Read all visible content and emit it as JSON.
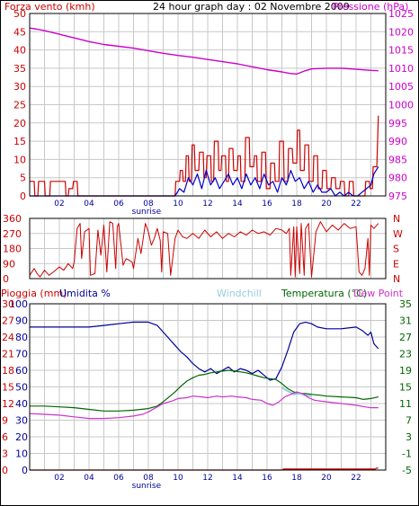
{
  "header": {
    "title": "24 hour graph day : 02 Novembre 2009",
    "left_label": "Forza vento (kmh)",
    "right_label": "Pressione (hPa)"
  },
  "colors": {
    "wind": "#cc0000",
    "gust": "#0000cc",
    "pressure": "#cc00cc",
    "humidity": "#000099",
    "windchill": "#99ccdd",
    "temperature": "#006600",
    "dewpoint": "#cc33cc",
    "rain": "#cc0000",
    "grid": "#c8c8c8"
  },
  "chart_data": [
    {
      "type": "line",
      "name": "wind-pressure",
      "x_ticks": [
        "02",
        "04",
        "06",
        "08",
        "10",
        "12",
        "14",
        "16",
        "18",
        "20",
        "22"
      ],
      "x_annotation": "sunrise",
      "ylim_left": [
        0,
        50
      ],
      "yticks_left": [
        0,
        5,
        10,
        15,
        20,
        25,
        30,
        35,
        40,
        45,
        50
      ],
      "ylim_right": [
        975,
        1025
      ],
      "yticks_right": [
        975,
        980,
        985,
        990,
        995,
        1000,
        1005,
        1010,
        1015,
        1020,
        1025
      ],
      "series": [
        {
          "key": "wind",
          "axis": "left",
          "x": [
            0.0,
            0.3,
            0.35,
            0.55,
            0.6,
            1.0,
            1.05,
            1.35,
            1.4,
            2.4,
            2.45,
            2.6,
            2.65,
            2.9,
            2.95,
            3.2,
            3.25,
            9.8,
            9.85,
            10.1,
            10.15,
            10.3,
            10.35,
            10.5,
            10.55,
            10.7,
            10.75,
            10.9,
            10.95,
            11.1,
            11.15,
            11.4,
            11.45,
            11.7,
            11.75,
            11.9,
            11.95,
            12.2,
            12.25,
            12.4,
            12.45,
            12.7,
            12.75,
            12.9,
            12.95,
            13.2,
            13.25,
            13.4,
            13.45,
            13.7,
            13.75,
            14.0,
            14.05,
            14.2,
            14.25,
            14.5,
            14.55,
            14.8,
            14.85,
            15.1,
            15.15,
            15.3,
            15.35,
            15.6,
            15.65,
            15.9,
            15.95,
            16.2,
            16.25,
            16.5,
            16.55,
            16.8,
            16.85,
            17.1,
            17.15,
            17.4,
            17.45,
            17.7,
            17.75,
            18.0,
            18.05,
            18.2,
            18.25,
            18.5,
            18.55,
            18.8,
            18.85,
            19.1,
            19.15,
            19.4,
            19.45,
            19.7,
            19.75,
            20.0,
            20.05,
            20.3,
            20.35,
            20.6,
            20.65,
            20.9,
            20.95,
            21.2,
            21.25,
            21.5,
            21.55,
            21.8,
            21.85,
            22.6,
            22.65,
            22.9,
            22.95,
            23.1,
            23.15,
            23.4,
            23.5
          ],
          "y": [
            4,
            4,
            0,
            0,
            4,
            4,
            0,
            0,
            4,
            4,
            0,
            0,
            2,
            2,
            4,
            4,
            0,
            0,
            4,
            4,
            7,
            7,
            4,
            4,
            11,
            11,
            4,
            4,
            14,
            14,
            7,
            7,
            12,
            12,
            5,
            5,
            11,
            11,
            4,
            4,
            15,
            15,
            7,
            7,
            11,
            11,
            4,
            4,
            13,
            13,
            7,
            7,
            11,
            11,
            4,
            4,
            16,
            16,
            8,
            8,
            11,
            11,
            4,
            4,
            12,
            12,
            2,
            2,
            9,
            9,
            4,
            4,
            15,
            15,
            4,
            4,
            13,
            13,
            9,
            9,
            18,
            18,
            7,
            7,
            14,
            14,
            4,
            4,
            11,
            11,
            2,
            2,
            7,
            7,
            2,
            2,
            5,
            5,
            2,
            2,
            4,
            4,
            0,
            0,
            4,
            4,
            0,
            0,
            4,
            4,
            2,
            2,
            8,
            8,
            22
          ]
        },
        {
          "key": "gust",
          "axis": "left",
          "x": [
            0.0,
            9.8,
            10.1,
            10.4,
            10.7,
            11.0,
            11.3,
            11.6,
            11.9,
            12.2,
            12.5,
            12.8,
            13.1,
            13.4,
            13.7,
            14.0,
            14.3,
            14.6,
            14.9,
            15.2,
            15.5,
            15.8,
            16.1,
            16.4,
            16.7,
            17.0,
            17.3,
            17.6,
            17.9,
            18.2,
            18.5,
            18.8,
            19.1,
            19.4,
            19.7,
            20.0,
            20.3,
            20.6,
            20.9,
            21.2,
            21.5,
            21.8,
            22.1,
            22.4,
            22.7,
            23.0,
            23.2,
            23.5
          ],
          "y": [
            0,
            0,
            2,
            1,
            5,
            3,
            6,
            2,
            7,
            3,
            5,
            2,
            4,
            6,
            3,
            5,
            2,
            6,
            3,
            5,
            2,
            6,
            3,
            4,
            1,
            5,
            3,
            7,
            4,
            5,
            2,
            4,
            1,
            3,
            1,
            1,
            2,
            0,
            1,
            0,
            1,
            0,
            0,
            1,
            2,
            3,
            6,
            8
          ]
        },
        {
          "key": "pressure",
          "axis": "right",
          "x": [
            0.0,
            0.5,
            1.0,
            1.5,
            2.0,
            2.5,
            3.0,
            3.5,
            4.0,
            5.0,
            6.0,
            7.0,
            8.0,
            9.0,
            10.0,
            11.0,
            12.0,
            13.0,
            14.0,
            15.0,
            16.0,
            17.0,
            17.5,
            18.0,
            18.5,
            19.0,
            20.0,
            21.0,
            22.0,
            23.0,
            23.5
          ],
          "y": [
            1021,
            1020.7,
            1020.3,
            1019.8,
            1019.3,
            1018.8,
            1018.3,
            1017.8,
            1017.3,
            1016.5,
            1016.0,
            1015.5,
            1014.8,
            1014.1,
            1013.5,
            1013.0,
            1012.4,
            1011.8,
            1011.2,
            1010.4,
            1009.6,
            1009.0,
            1008.6,
            1008.4,
            1009.2,
            1009.8,
            1010.0,
            1010.0,
            1009.7,
            1009.4,
            1009.3
          ]
        }
      ]
    },
    {
      "type": "line",
      "name": "wind-direction",
      "ylim": [
        0,
        360
      ],
      "yticks": [
        0,
        90,
        180,
        270,
        360
      ],
      "right_labels": [
        "N",
        "W",
        "S",
        "E",
        "N"
      ],
      "series": [
        {
          "key": "direction",
          "x": [
            0.0,
            0.3,
            0.5,
            0.7,
            1.0,
            1.3,
            1.6,
            2.0,
            2.3,
            2.6,
            2.9,
            3.0,
            3.2,
            3.4,
            3.5,
            3.7,
            4.0,
            4.1,
            4.4,
            4.6,
            4.8,
            5.0,
            5.2,
            5.4,
            5.6,
            5.8,
            5.9,
            6.0,
            6.3,
            6.5,
            6.9,
            7.0,
            7.3,
            7.5,
            7.8,
            8.0,
            8.2,
            8.4,
            8.6,
            8.8,
            8.9,
            9.0,
            9.3,
            9.5,
            9.8,
            10.0,
            10.3,
            10.6,
            11.0,
            11.4,
            11.8,
            12.2,
            12.6,
            13.0,
            13.4,
            13.8,
            14.2,
            14.6,
            15.0,
            15.4,
            15.8,
            16.2,
            16.6,
            17.0,
            17.3,
            17.5,
            17.6,
            17.8,
            17.9,
            18.0,
            18.2,
            18.3,
            18.5,
            18.6,
            18.8,
            19.0,
            19.3,
            19.6,
            20.0,
            20.4,
            20.8,
            21.2,
            21.6,
            22.0,
            22.2,
            22.4,
            22.6,
            22.8,
            22.9,
            23.0,
            23.2,
            23.5
          ],
          "y": [
            20,
            60,
            30,
            10,
            50,
            20,
            40,
            70,
            50,
            90,
            60,
            100,
            300,
            330,
            120,
            280,
            300,
            20,
            30,
            290,
            140,
            320,
            40,
            340,
            330,
            60,
            310,
            330,
            80,
            120,
            100,
            60,
            240,
            150,
            330,
            280,
            200,
            240,
            300,
            230,
            40,
            280,
            270,
            20,
            240,
            290,
            250,
            240,
            270,
            240,
            290,
            250,
            280,
            240,
            270,
            250,
            280,
            260,
            290,
            270,
            280,
            260,
            300,
            290,
            270,
            300,
            20,
            310,
            10,
            310,
            30,
            330,
            20,
            300,
            330,
            10,
            280,
            340,
            280,
            320,
            290,
            330,
            300,
            310,
            40,
            20,
            60,
            240,
            20,
            320,
            300,
            330
          ]
        }
      ]
    },
    {
      "type": "line",
      "name": "humidity-temperature",
      "labels": {
        "rain": "Pioggia (mm)",
        "humidity": "Umidita %",
        "windchill": "Windchill",
        "temperature": "Temperatura (°C)",
        "dewpoint": "Dew Point"
      },
      "x_ticks": [
        "02",
        "04",
        "06",
        "08",
        "10",
        "12",
        "14",
        "16",
        "18",
        "20",
        "22"
      ],
      "x_annotation": "sunrise",
      "ylim_humidity": [
        0,
        100
      ],
      "yticks_humidity": [
        0,
        10,
        20,
        30,
        40,
        50,
        60,
        70,
        80,
        90,
        100
      ],
      "yticks_rain": [
        0,
        3,
        6,
        9,
        12,
        15,
        18,
        21,
        24,
        27,
        30
      ],
      "ylim_temp": [
        -5,
        35
      ],
      "yticks_temp": [
        -5,
        -1,
        3,
        7,
        11,
        15,
        19,
        23,
        27,
        31,
        35
      ],
      "series": [
        {
          "key": "humidity",
          "axis": "humidity",
          "x": [
            0.0,
            1.0,
            2.0,
            3.0,
            4.0,
            5.0,
            6.0,
            7.0,
            8.0,
            8.6,
            9.0,
            9.4,
            9.8,
            10.2,
            10.6,
            11.0,
            11.4,
            11.8,
            12.2,
            12.6,
            13.0,
            13.4,
            13.8,
            14.2,
            14.6,
            15.0,
            15.4,
            15.8,
            16.2,
            16.6,
            17.0,
            17.4,
            17.8,
            18.2,
            18.6,
            19.0,
            19.4,
            20.0,
            21.0,
            22.0,
            22.4,
            22.8,
            23.0,
            23.2,
            23.5
          ],
          "y": [
            86,
            86,
            86,
            86,
            86,
            87,
            88,
            89,
            89,
            87,
            83,
            79,
            75,
            71,
            68,
            64,
            61,
            59,
            61,
            58,
            60,
            62,
            59,
            61,
            60,
            58,
            60,
            57,
            54,
            55,
            62,
            72,
            83,
            88,
            89,
            88,
            86,
            85,
            85,
            86,
            84,
            81,
            83,
            76,
            73
          ]
        },
        {
          "key": "temperature",
          "axis": "temp",
          "x": [
            0.0,
            1.0,
            2.0,
            3.0,
            4.0,
            5.0,
            6.0,
            7.0,
            8.0,
            8.6,
            9.0,
            9.4,
            9.8,
            10.2,
            10.6,
            11.0,
            11.4,
            11.8,
            12.2,
            12.6,
            13.0,
            13.4,
            13.8,
            14.2,
            14.6,
            15.0,
            15.4,
            15.8,
            16.2,
            16.6,
            17.0,
            17.4,
            17.8,
            18.2,
            18.6,
            19.0,
            19.6,
            20.0,
            21.0,
            22.0,
            22.5,
            23.0,
            23.5
          ],
          "y": [
            10.4,
            10.4,
            10.2,
            10.0,
            9.6,
            9.2,
            9.2,
            9.4,
            9.8,
            10.4,
            11.4,
            12.6,
            13.8,
            15.2,
            16.4,
            17.2,
            17.8,
            18.0,
            18.4,
            18.6,
            18.8,
            19.0,
            18.8,
            18.6,
            18.4,
            18.0,
            17.6,
            17.2,
            17.0,
            16.8,
            15.8,
            14.6,
            13.8,
            13.4,
            13.4,
            13.2,
            13.0,
            12.8,
            12.6,
            12.4,
            12.0,
            12.2,
            12.6
          ]
        },
        {
          "key": "windchill",
          "axis": "temp",
          "x": [
            17.0,
            17.4,
            17.8,
            18.2,
            18.6,
            19.0
          ],
          "y": [
            14.8,
            14.0,
            13.2,
            13.4,
            13.0,
            12.8
          ]
        },
        {
          "key": "dewpoint",
          "axis": "temp",
          "x": [
            0.0,
            1.0,
            2.0,
            3.0,
            4.0,
            5.0,
            6.0,
            7.0,
            7.6,
            8.0,
            8.6,
            9.0,
            9.6,
            10.0,
            10.6,
            11.0,
            11.6,
            12.0,
            12.6,
            13.0,
            13.6,
            14.0,
            14.6,
            15.0,
            15.6,
            16.0,
            16.4,
            16.8,
            17.2,
            17.6,
            18.0,
            18.4,
            18.8,
            19.2,
            20.0,
            21.0,
            22.0,
            22.6,
            23.0,
            23.5
          ],
          "y": [
            8.6,
            8.4,
            8.2,
            7.8,
            7.4,
            7.4,
            7.6,
            8.0,
            8.4,
            9.0,
            10.2,
            11.0,
            11.6,
            12.2,
            12.4,
            12.8,
            12.6,
            12.4,
            12.8,
            12.6,
            12.8,
            12.6,
            12.4,
            12.0,
            11.8,
            11.0,
            10.6,
            11.4,
            12.6,
            13.2,
            13.8,
            13.4,
            12.4,
            11.8,
            11.4,
            11.0,
            10.6,
            10.2,
            10.0,
            10.0
          ]
        },
        {
          "key": "rain",
          "axis": "humidity",
          "x": [
            0.0,
            17.0,
            17.1,
            23.3,
            23.4,
            23.5
          ],
          "y": [
            0,
            0,
            0.6,
            0.6,
            1.2,
            1.2
          ]
        }
      ]
    }
  ]
}
